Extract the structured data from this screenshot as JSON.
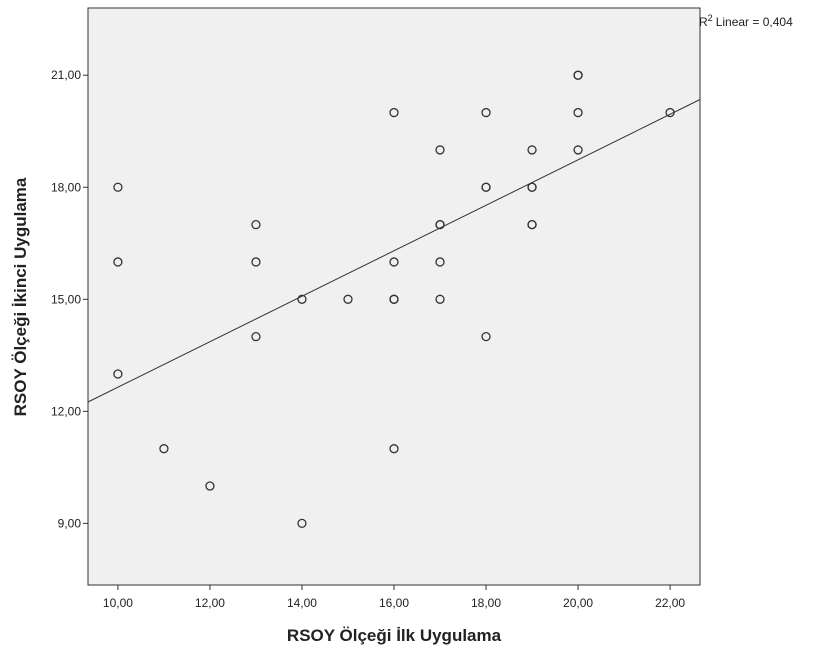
{
  "chart_data": {
    "type": "scatter",
    "title": "",
    "xlabel": "RSOY Ölçeği İlk Uygulama",
    "ylabel": "RSOY Ölçeği İkinci Uygulama",
    "xlim": [
      9.35,
      22.65
    ],
    "ylim": [
      7.35,
      22.8
    ],
    "x_ticks": [
      10,
      12,
      14,
      16,
      18,
      20,
      22
    ],
    "x_tick_labels": [
      "10,00",
      "12,00",
      "14,00",
      "16,00",
      "18,00",
      "20,00",
      "22,00"
    ],
    "y_ticks": [
      9,
      12,
      15,
      18,
      21
    ],
    "y_tick_labels": [
      "9,00",
      "12,00",
      "15,00",
      "18,00",
      "21,00"
    ],
    "points": [
      {
        "x": 10,
        "y": 18
      },
      {
        "x": 10,
        "y": 16
      },
      {
        "x": 10,
        "y": 13
      },
      {
        "x": 11,
        "y": 11
      },
      {
        "x": 12,
        "y": 10
      },
      {
        "x": 13,
        "y": 17
      },
      {
        "x": 13,
        "y": 16
      },
      {
        "x": 13,
        "y": 14
      },
      {
        "x": 14,
        "y": 15
      },
      {
        "x": 14,
        "y": 9
      },
      {
        "x": 15,
        "y": 15
      },
      {
        "x": 16,
        "y": 20
      },
      {
        "x": 16,
        "y": 16
      },
      {
        "x": 16,
        "y": 15
      },
      {
        "x": 16,
        "y": 15
      },
      {
        "x": 16,
        "y": 11
      },
      {
        "x": 17,
        "y": 19
      },
      {
        "x": 17,
        "y": 17
      },
      {
        "x": 17,
        "y": 17
      },
      {
        "x": 17,
        "y": 16
      },
      {
        "x": 17,
        "y": 15
      },
      {
        "x": 18,
        "y": 20
      },
      {
        "x": 18,
        "y": 18
      },
      {
        "x": 18,
        "y": 18
      },
      {
        "x": 18,
        "y": 14
      },
      {
        "x": 19,
        "y": 19
      },
      {
        "x": 19,
        "y": 18
      },
      {
        "x": 19,
        "y": 18
      },
      {
        "x": 19,
        "y": 17
      },
      {
        "x": 19,
        "y": 17
      },
      {
        "x": 20,
        "y": 21
      },
      {
        "x": 20,
        "y": 21
      },
      {
        "x": 20,
        "y": 20
      },
      {
        "x": 20,
        "y": 19
      },
      {
        "x": 22,
        "y": 20
      }
    ],
    "fit_line": {
      "type": "linear",
      "label": "Linear = 0,404",
      "label_prefix": "R",
      "label_sup": "2",
      "x": [
        9.35,
        22.65
      ],
      "y": [
        12.25,
        20.35
      ]
    },
    "grid": false,
    "plot_background": "#f0f0f0",
    "marker_color": "#333333",
    "line_color": "#333333"
  }
}
